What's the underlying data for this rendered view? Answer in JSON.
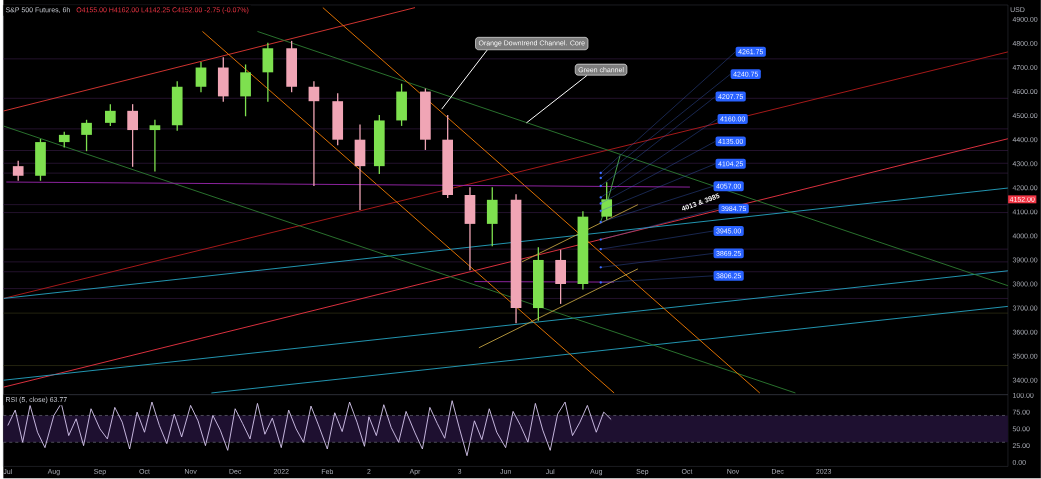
{
  "chart_data": [
    {
      "type": "candlestick",
      "title": "S&P 500 Futures, 6h",
      "subtitle": "O4155.00 H4162.00 L4142.25 C4152.00 -2.75 (-0.07%)",
      "ylabel": "USD",
      "x": [
        "2021-07-08",
        "2021-07-23",
        "2021-08-08",
        "2021-08-23",
        "2021-09-08",
        "2021-09-23",
        "2021-10-08",
        "2021-10-23",
        "2021-11-08",
        "2021-11-23",
        "2021-12-08",
        "2021-12-23",
        "2022-01-08",
        "2022-01-23",
        "2022-02-08",
        "2022-02-23",
        "2022-03-08",
        "2022-03-23",
        "2022-04-08",
        "2022-04-23",
        "2022-05-08",
        "2022-05-23",
        "2022-06-08",
        "2022-06-23",
        "2022-07-08",
        "2022-07-23",
        "2022-08-08"
      ],
      "ohlc": [
        [
          4290,
          4310,
          4232,
          4250
        ],
        [
          4250,
          4400,
          4232,
          4390
        ],
        [
          4390,
          4430,
          4370,
          4420
        ],
        [
          4420,
          4480,
          4355,
          4470
        ],
        [
          4470,
          4545,
          4460,
          4520
        ],
        [
          4520,
          4545,
          4290,
          4440
        ],
        [
          4440,
          4480,
          4270,
          4460
        ],
        [
          4460,
          4640,
          4440,
          4620
        ],
        [
          4620,
          4720,
          4600,
          4700
        ],
        [
          4700,
          4740,
          4560,
          4580
        ],
        [
          4580,
          4710,
          4500,
          4680
        ],
        [
          4680,
          4800,
          4560,
          4780
        ],
        [
          4780,
          4808,
          4600,
          4620
        ],
        [
          4620,
          4640,
          4210,
          4560
        ],
        [
          4560,
          4590,
          4380,
          4400
        ],
        [
          4400,
          4460,
          4110,
          4290
        ],
        [
          4290,
          4500,
          4260,
          4480
        ],
        [
          4480,
          4630,
          4460,
          4600
        ],
        [
          4600,
          4610,
          4360,
          4400
        ],
        [
          4400,
          4500,
          4160,
          4170
        ],
        [
          4170,
          4200,
          3860,
          4050
        ],
        [
          4050,
          4200,
          3960,
          4150
        ],
        [
          4150,
          4170,
          3640,
          3700
        ],
        [
          3700,
          3950,
          3650,
          3900
        ],
        [
          3900,
          3940,
          3720,
          3800
        ],
        [
          3800,
          4100,
          3780,
          4080
        ],
        [
          4080,
          4220,
          4070,
          4152
        ]
      ],
      "colors": [
        "#f0a5b5",
        "#7ee04f",
        "#7ee04f",
        "#7ee04f",
        "#7ee04f",
        "#f0a5b5",
        "#7ee04f",
        "#7ee04f",
        "#7ee04f",
        "#f0a5b5",
        "#7ee04f",
        "#7ee04f",
        "#f0a5b5",
        "#f0a5b5",
        "#f0a5b5",
        "#f0a5b5",
        "#7ee04f",
        "#7ee04f",
        "#f0a5b5",
        "#f0a5b5",
        "#f0a5b5",
        "#7ee04f",
        "#f0a5b5",
        "#7ee04f",
        "#f0a5b5",
        "#7ee04f",
        "#7ee04f"
      ],
      "series": [
        {
          "type": "line",
          "color": "#e53935",
          "x": [
            "2021-06-28",
            "2022-04-01"
          ],
          "values": [
            4519,
            4949
          ]
        },
        {
          "type": "line",
          "color": "#b71c1c",
          "x": [
            "2021-06-28",
            "2023-05-05"
          ],
          "values": [
            3740,
            4765
          ]
        },
        {
          "type": "line",
          "color": "#f23645",
          "x": [
            "2021-06-28",
            "2023-05-05"
          ],
          "values": [
            3371,
            4404
          ]
        },
        {
          "type": "line",
          "color": "#26a6c4",
          "x": [
            "2021-06-28",
            "2023-05-05"
          ],
          "values": [
            3740,
            4199
          ]
        },
        {
          "type": "line",
          "color": "#26a6c4",
          "x": [
            "2021-06-28",
            "2023-05-05"
          ],
          "values": [
            3400,
            3855
          ]
        },
        {
          "type": "line",
          "color": "#26a6c4",
          "x": [
            "2021-11-15",
            "2023-05-05"
          ],
          "values": [
            3347,
            3707
          ]
        },
        {
          "type": "line",
          "color": "#2e7d32",
          "x": [
            "2021-12-16",
            "2023-05-05"
          ],
          "values": [
            4850,
            3793
          ]
        },
        {
          "type": "line",
          "color": "#2e7d32",
          "x": [
            "2021-06-28",
            "2022-12-13"
          ],
          "values": [
            4457,
            3347
          ]
        },
        {
          "type": "line",
          "color": "#f57c00",
          "x": [
            "2022-01-29",
            "2022-11-19"
          ],
          "values": [
            4949,
            3347
          ]
        },
        {
          "type": "line",
          "color": "#f57c00",
          "x": [
            "2021-11-09",
            "2022-08-13"
          ],
          "values": [
            4850,
            3347
          ]
        },
        {
          "type": "line",
          "color": "#9c27b0",
          "x": [
            "2021-06-30",
            "2022-10-03"
          ],
          "values": [
            4224,
            4203
          ]
        },
        {
          "type": "line",
          "color": "#9c27b0",
          "x": [
            "2022-05-11",
            "2022-08-13"
          ],
          "values": [
            3810,
            3808
          ]
        },
        {
          "type": "line",
          "color": "#c0a040",
          "x": [
            "2022-05-14",
            "2022-08-29"
          ],
          "values": [
            3535,
            3863
          ]
        },
        {
          "type": "line",
          "color": "#c0a040",
          "x": [
            "2022-06-12",
            "2022-08-29"
          ],
          "values": [
            3892,
            4130
          ]
        },
        {
          "type": "line",
          "color": "#4caf50",
          "x": [
            "2022-08-04",
            "2022-08-08",
            "2022-08-17"
          ],
          "values": [
            4060,
            4130,
            4334
          ]
        }
      ],
      "xlim": [
        "2021-06-28",
        "2023-05-05"
      ],
      "ylim": [
        3340,
        4960
      ],
      "yticks": [
        {
          "value": 3400,
          "label": "3400.00"
        },
        {
          "value": 3500,
          "label": "3500.00"
        },
        {
          "value": 3600,
          "label": "3600.00"
        },
        {
          "value": 3700,
          "label": "3700.00"
        },
        {
          "value": 3800,
          "label": "3800.00"
        },
        {
          "value": 3900,
          "label": "3900.00"
        },
        {
          "value": 4000,
          "label": "4000.00"
        },
        {
          "value": 4100,
          "label": "4100.00"
        },
        {
          "value": 4200,
          "label": "4200.00"
        },
        {
          "value": 4300,
          "label": "4300.00"
        },
        {
          "value": 4400,
          "label": "4400.00"
        },
        {
          "value": 4500,
          "label": "4500.00"
        },
        {
          "value": 4600,
          "label": "4600.00"
        },
        {
          "value": 4700,
          "label": "4700.00"
        },
        {
          "value": 4800,
          "label": "4800.00"
        },
        {
          "value": 4900,
          "label": "4900.00"
        }
      ],
      "tick_labels": "y",
      "ref_lines": [
        {
          "axis": "y",
          "value": 4736,
          "color": "#3a1f4a"
        },
        {
          "axis": "y",
          "value": 4572,
          "color": "#3a1f4a"
        },
        {
          "axis": "y",
          "value": 4445,
          "color": "#3a1f4a"
        },
        {
          "axis": "y",
          "value": 4355,
          "color": "#3a1f4a"
        },
        {
          "axis": "y",
          "value": 4302,
          "color": "#3a1f4a"
        },
        {
          "axis": "y",
          "value": 4261,
          "color": "#3a1f4a"
        },
        {
          "axis": "y",
          "value": 4130,
          "color": "#3a1f4a"
        },
        {
          "axis": "y",
          "value": 4097,
          "color": "#3a1f4a"
        },
        {
          "axis": "y",
          "value": 3945,
          "color": "#3a1f4a"
        },
        {
          "axis": "y",
          "value": 3892,
          "color": "#3a1f4a"
        },
        {
          "axis": "y",
          "value": 3851,
          "color": "#3a1f4a"
        },
        {
          "axis": "y",
          "value": 3781,
          "color": "#3a1f4a"
        },
        {
          "axis": "y",
          "value": 3740,
          "color": "#3a1f4a"
        },
        {
          "axis": "y",
          "value": 3679,
          "color": "#3a3a1a"
        },
        {
          "axis": "y",
          "value": 3461,
          "color": "#3a3a1a"
        }
      ],
      "annotations": [
        {
          "text": "4261.75",
          "x": "2022-08-04",
          "y": 4261.75
        },
        {
          "text": "4240.75",
          "x": "2022-08-04",
          "y": 4240.75
        },
        {
          "text": "4207.75",
          "x": "2022-08-04",
          "y": 4207.75
        },
        {
          "text": "4160.00",
          "x": "2022-08-04",
          "y": 4160
        },
        {
          "text": "4135.00",
          "x": "2022-08-04",
          "y": 4135
        },
        {
          "text": "4104.25",
          "x": "2022-08-04",
          "y": 4104.25
        },
        {
          "text": "4057.00",
          "x": "2022-08-04",
          "y": 4057
        },
        {
          "text": "3984.75",
          "x": "2022-08-04",
          "y": 3984.75
        },
        {
          "text": "3945.00",
          "x": "2022-08-04",
          "y": 3945
        },
        {
          "text": "3869.25",
          "x": "2022-08-04",
          "y": 3869.25
        },
        {
          "text": "3806.25",
          "x": "2022-08-04",
          "y": 3806.25
        },
        "4013 & 3985",
        {
          "text": "Orange Downtrend Channel. Core",
          "x": "2022-04-19",
          "y": 4527
        },
        {
          "text": "Green channel",
          "x": "2022-06-15",
          "y": 4470
        },
        "4152.00"
      ]
    },
    {
      "type": "line",
      "title": "RSI (5, close) 63.77",
      "color": "#d8c8f0",
      "x": [
        "2021-07-01",
        "2021-07-06",
        "2021-07-11",
        "2021-07-16",
        "2021-07-21",
        "2021-07-26",
        "2021-08-01",
        "2021-08-06",
        "2021-08-11",
        "2021-08-16",
        "2021-08-21",
        "2021-08-26",
        "2021-09-01",
        "2021-09-06",
        "2021-09-11",
        "2021-09-16",
        "2021-09-21",
        "2021-09-26",
        "2021-10-01",
        "2021-10-06",
        "2021-10-11",
        "2021-10-16",
        "2021-10-21",
        "2021-10-26",
        "2021-11-01",
        "2021-11-06",
        "2021-11-11",
        "2021-11-16",
        "2021-11-21",
        "2021-11-26",
        "2021-12-01",
        "2021-12-06",
        "2021-12-11",
        "2021-12-16",
        "2021-12-21",
        "2021-12-26",
        "2022-01-01",
        "2022-01-06",
        "2022-01-11",
        "2022-01-16",
        "2022-01-21",
        "2022-01-26",
        "2022-02-01",
        "2022-02-06",
        "2022-02-11",
        "2022-02-16",
        "2022-02-21",
        "2022-02-26",
        "2022-03-01",
        "2022-03-06",
        "2022-03-11",
        "2022-03-16",
        "2022-03-21",
        "2022-03-26",
        "2022-04-01",
        "2022-04-06",
        "2022-04-11",
        "2022-04-16",
        "2022-04-21",
        "2022-04-26",
        "2022-05-01",
        "2022-05-06",
        "2022-05-11",
        "2022-05-16",
        "2022-05-21",
        "2022-05-26",
        "2022-06-01",
        "2022-06-06",
        "2022-06-11",
        "2022-06-16",
        "2022-06-21",
        "2022-06-26",
        "2022-07-01",
        "2022-07-06",
        "2022-07-11",
        "2022-07-16",
        "2022-07-21",
        "2022-07-26",
        "2022-08-01",
        "2022-08-06",
        "2022-08-11"
      ],
      "values": [
        55,
        78,
        30,
        85,
        45,
        22,
        70,
        88,
        40,
        65,
        25,
        80,
        50,
        35,
        82,
        60,
        20,
        75,
        45,
        90,
        55,
        28,
        72,
        38,
        85,
        62,
        25,
        70,
        48,
        18,
        80,
        58,
        35,
        88,
        42,
        66,
        22,
        78,
        50,
        30,
        84,
        56,
        20,
        74,
        46,
        90,
        60,
        24,
        68,
        40,
        86,
        52,
        30,
        76,
        44,
        20,
        82,
        58,
        36,
        92,
        50,
        10,
        62,
        34,
        80,
        45,
        22,
        76,
        55,
        30,
        88,
        48,
        18,
        72,
        90,
        40,
        60,
        85,
        45,
        75,
        64
      ],
      "xlim": [
        "2021-06-28",
        "2023-05-05"
      ],
      "ylim": [
        -6,
        101
      ],
      "xticks": [
        {
          "value": "2021-07-01",
          "label": "Jul"
        },
        {
          "value": "2021-08-01",
          "label": "Aug"
        },
        {
          "value": "2021-09-01",
          "label": "Sep"
        },
        {
          "value": "2021-10-01",
          "label": "Oct"
        },
        {
          "value": "2021-11-01",
          "label": "Nov"
        },
        {
          "value": "2021-12-01",
          "label": "Dec"
        },
        {
          "value": "2022-01-01",
          "label": "2022"
        },
        {
          "value": "2022-02-01",
          "label": "Feb"
        },
        {
          "value": "2022-03-01",
          "label": "2"
        },
        {
          "value": "2022-04-01",
          "label": "Apr"
        },
        {
          "value": "2022-05-01",
          "label": "3"
        },
        {
          "value": "2022-06-01",
          "label": "Jun"
        },
        {
          "value": "2022-07-01",
          "label": "Jul"
        },
        {
          "value": "2022-08-01",
          "label": "Aug"
        },
        {
          "value": "2022-09-01",
          "label": "Sep"
        },
        {
          "value": "2022-10-01",
          "label": "Oct"
        },
        {
          "value": "2022-11-01",
          "label": "Nov"
        },
        {
          "value": "2022-12-01",
          "label": "Dec"
        },
        {
          "value": "2023-01-01",
          "label": "2023"
        }
      ],
      "yticks": [
        {
          "value": 0,
          "label": "0.00"
        },
        {
          "value": 25,
          "label": "25.00"
        },
        {
          "value": 50,
          "label": "50.00"
        },
        {
          "value": 75,
          "label": "75.00"
        },
        {
          "value": 100,
          "label": "100.00"
        }
      ],
      "ref_lines": [
        {
          "axis": "y",
          "value": 70,
          "color": "#787b86",
          "line_style": "dashed"
        },
        {
          "axis": "y",
          "value": 30,
          "color": "#787b86",
          "line_style": "dashed"
        }
      ],
      "bands": [
        {
          "axis": "y",
          "from": 30,
          "to": 70,
          "color": "#1e1030"
        }
      ]
    }
  ]
}
